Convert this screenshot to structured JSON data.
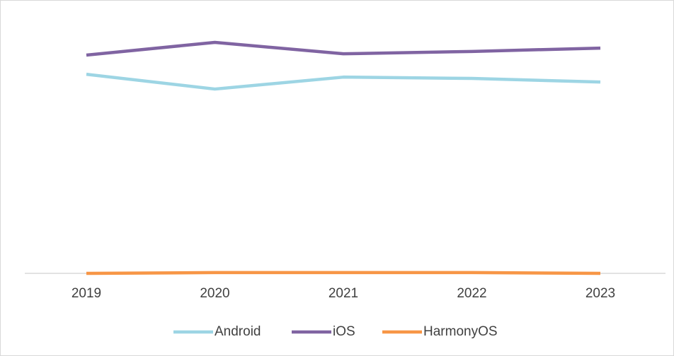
{
  "chart_data": {
    "type": "line",
    "categories": [
      "2019",
      "2020",
      "2021",
      "2022",
      "2023"
    ],
    "series": [
      {
        "name": "Android",
        "color": "#9dd5e4",
        "values": [
          76.8,
          71.1,
          75.7,
          75.2,
          73.8
        ]
      },
      {
        "name": "iOS",
        "color": "#8064a2",
        "values": [
          84.2,
          89.1,
          84.7,
          85.6,
          86.9
        ]
      },
      {
        "name": "HarmonyOS",
        "color": "#f79646",
        "values": [
          0,
          0.3,
          0.3,
          0.3,
          0
        ]
      }
    ],
    "ylim": [
      0,
      100
    ],
    "legend": "bottom"
  }
}
